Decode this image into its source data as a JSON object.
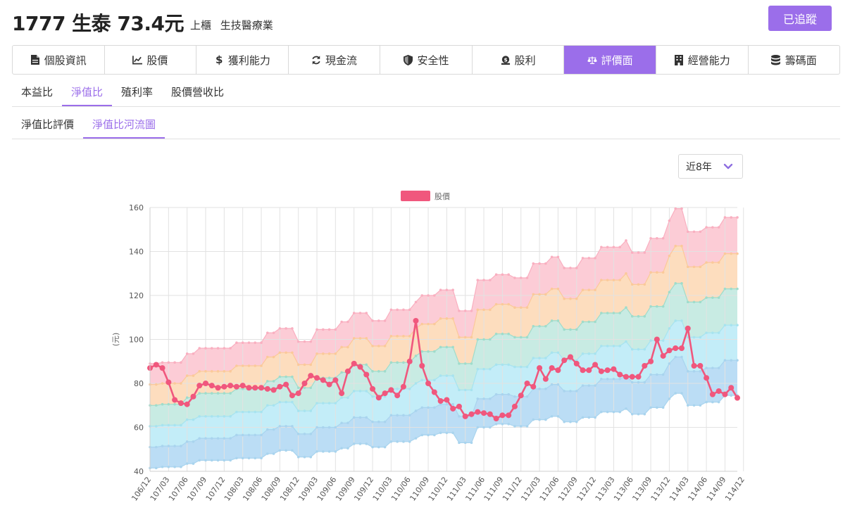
{
  "header": {
    "title": "1777 生泰 73.4元",
    "market": "上櫃",
    "industry": "生技醫療業",
    "follow_label": "已追蹤"
  },
  "main_tabs": [
    {
      "label": "個股資訊",
      "icon": "document-icon"
    },
    {
      "label": "股價",
      "icon": "line-chart-icon"
    },
    {
      "label": "獲利能力",
      "icon": "dollar-icon"
    },
    {
      "label": "現金流",
      "icon": "refresh-icon"
    },
    {
      "label": "安全性",
      "icon": "shield-icon"
    },
    {
      "label": "股利",
      "icon": "money-bag-icon"
    },
    {
      "label": "評價面",
      "icon": "balance-scale-icon",
      "active": true
    },
    {
      "label": "經營能力",
      "icon": "building-icon"
    },
    {
      "label": "籌碼面",
      "icon": "database-icon"
    }
  ],
  "sub_tabs": [
    {
      "label": "本益比"
    },
    {
      "label": "淨值比",
      "active": true
    },
    {
      "label": "殖利率"
    },
    {
      "label": "股價營收比"
    }
  ],
  "sub_tabs2": [
    {
      "label": "淨值比評價"
    },
    {
      "label": "淨值比河流圖",
      "active": true
    }
  ],
  "range": {
    "selected": "近8年"
  },
  "colors": {
    "accent": "#9B6EEA",
    "price": "#F0577D",
    "bands": [
      "#BBDDF5",
      "#C3EDF8",
      "#C8EBE3",
      "#FDDDBE",
      "#FCCCD6"
    ],
    "band_lines": [
      "#A9D4EE",
      "#A9D4EE",
      "#A7E3EF",
      "#9FDCCB",
      "#FBC99A",
      "#F9AFC0"
    ]
  },
  "chart_data": {
    "type": "line",
    "title": "",
    "legend": [
      "股價"
    ],
    "ylabel": "(元)",
    "ylim": [
      40,
      160
    ],
    "yticks": [
      40,
      60,
      80,
      100,
      120,
      140,
      160
    ],
    "xticks": [
      "106/12",
      "107/03",
      "107/06",
      "107/09",
      "107/12",
      "108/03",
      "108/06",
      "108/09",
      "108/12",
      "109/03",
      "109/06",
      "109/09",
      "109/12",
      "110/03",
      "110/06",
      "110/09",
      "110/12",
      "111/03",
      "111/06",
      "111/09",
      "111/12",
      "112/03",
      "112/06",
      "112/09",
      "112/12",
      "113/03",
      "113/06",
      "113/09",
      "113/12",
      "114/03",
      "114/06",
      "114/09",
      "114/12"
    ],
    "price": [
      87,
      88.5,
      87,
      80.5,
      72.5,
      71,
      70.5,
      74,
      79,
      80,
      79,
      78,
      78.5,
      79,
      78.5,
      79,
      78,
      78,
      78,
      77.5,
      77,
      78.5,
      79.5,
      74.5,
      75.5,
      80,
      83.5,
      82.5,
      81.5,
      79.5,
      81.5,
      75.5,
      85.5,
      89,
      87.5,
      84,
      77.5,
      73.5,
      75.5,
      77,
      74.5,
      78.5,
      90,
      108.5,
      88,
      80,
      76,
      72,
      72.5,
      68.5,
      69.5,
      65,
      66,
      67,
      66.5,
      66,
      64,
      65.5,
      65.5,
      69.5,
      74.5,
      80,
      78.5,
      87,
      82,
      87,
      86,
      90.5,
      92,
      89,
      86,
      86,
      88.5,
      85.5,
      86,
      86.5,
      84,
      83,
      83,
      83,
      88,
      90,
      100,
      92.5,
      95,
      96,
      96,
      105,
      88,
      88,
      82.5,
      75,
      76.5,
      75,
      78,
      73.4
    ],
    "bands": [
      {
        "name": "band1",
        "values": [
          41.5,
          41.5,
          42,
          42,
          42,
          42,
          43.5,
          43.5,
          45,
          45,
          45,
          45,
          45,
          45,
          46,
          46,
          46,
          46,
          46,
          48,
          48,
          49.5,
          49.5,
          49.5,
          46.5,
          46.5,
          46.5,
          49,
          49,
          49,
          49,
          50.5,
          50.5,
          52.5,
          52.5,
          52.5,
          51,
          51,
          51,
          53.5,
          53.5,
          53.5,
          53.5,
          55,
          56.5,
          56.5,
          56.5,
          57.5,
          57.5,
          57.5,
          53,
          53,
          53,
          60,
          60,
          60,
          61.5,
          61.5,
          61.5,
          60.5,
          60.5,
          60.5,
          63.5,
          63.5,
          63.5,
          65,
          65,
          62.5,
          62.5,
          62.5,
          64.5,
          64.5,
          64.5,
          67,
          67,
          67,
          67,
          68.5,
          66,
          66,
          66,
          69,
          69,
          69,
          73,
          75.5,
          75.5,
          70,
          70,
          70,
          71.5,
          71.5,
          71.5,
          74.5,
          74.5,
          74.5
        ]
      },
      {
        "name": "band2",
        "values": [
          51,
          51,
          51.5,
          51.5,
          51.5,
          51.5,
          53.5,
          53.5,
          55,
          55,
          55,
          55,
          55,
          55,
          56.5,
          56.5,
          56.5,
          56.5,
          56.5,
          59,
          59,
          60.5,
          60.5,
          60.5,
          57,
          57,
          57,
          60,
          60,
          60,
          60,
          62,
          62,
          64.5,
          64.5,
          64.5,
          62.5,
          62.5,
          62.5,
          65.5,
          65.5,
          65.5,
          65.5,
          67.5,
          69,
          69,
          69,
          70.5,
          70.5,
          70.5,
          65,
          65,
          65,
          73,
          73,
          73,
          75,
          75,
          75,
          74,
          74,
          74,
          77.5,
          77.5,
          77.5,
          79.5,
          79.5,
          76.5,
          76.5,
          76.5,
          79,
          79,
          79,
          82,
          82,
          82,
          82,
          83.5,
          80.5,
          80.5,
          80.5,
          84,
          84,
          84,
          89,
          92,
          92,
          85.5,
          85.5,
          85.5,
          87,
          87,
          87,
          90.5,
          90.5,
          90.5
        ]
      },
      {
        "name": "band3",
        "values": [
          60.5,
          60.5,
          61,
          61,
          61,
          61,
          63.5,
          63.5,
          65,
          65,
          65,
          65,
          65,
          65,
          67,
          67,
          67,
          67,
          67,
          70,
          70,
          71.5,
          71.5,
          71.5,
          67.5,
          67.5,
          67.5,
          71,
          71,
          71,
          71,
          73.5,
          73.5,
          76.5,
          76.5,
          76.5,
          74,
          74,
          74,
          77.5,
          77.5,
          77.5,
          77.5,
          80,
          81.5,
          81.5,
          81.5,
          83.5,
          83.5,
          83.5,
          77,
          77,
          77,
          86.5,
          86.5,
          86.5,
          88.5,
          88.5,
          88.5,
          87.5,
          87.5,
          87.5,
          91.5,
          91.5,
          91.5,
          94,
          94,
          90.5,
          90.5,
          90.5,
          93.5,
          93.5,
          93.5,
          97,
          97,
          97,
          97,
          99,
          95.5,
          95.5,
          95.5,
          99.5,
          99.5,
          99.5,
          105,
          108.5,
          108.5,
          101,
          101,
          101,
          103,
          103,
          103,
          106.5,
          106.5,
          106.5
        ]
      },
      {
        "name": "band4",
        "values": [
          70,
          70,
          70.5,
          70.5,
          70.5,
          70.5,
          73.5,
          73.5,
          75.5,
          75.5,
          75.5,
          75.5,
          75.5,
          75.5,
          77.5,
          77.5,
          77.5,
          77.5,
          77.5,
          81,
          81,
          83,
          83,
          83,
          78,
          78,
          78,
          82.5,
          82.5,
          82.5,
          82.5,
          85,
          85,
          88.5,
          88.5,
          88.5,
          85.5,
          85.5,
          85.5,
          89.5,
          89.5,
          89.5,
          89.5,
          92.5,
          94.5,
          94.5,
          94.5,
          96.5,
          96.5,
          96.5,
          89,
          89,
          89,
          100,
          100,
          100,
          102.5,
          102.5,
          102.5,
          101,
          101,
          101,
          106,
          106,
          106,
          108.5,
          108.5,
          104.5,
          104.5,
          104.5,
          108,
          108,
          108,
          112,
          112,
          112,
          112,
          114.5,
          110.5,
          110.5,
          110.5,
          115,
          115,
          115,
          121.5,
          125.5,
          125.5,
          117,
          117,
          117,
          119,
          119,
          119,
          123,
          123,
          123
        ]
      },
      {
        "name": "band5",
        "values": [
          79.5,
          79.5,
          80,
          80,
          80,
          80,
          83.5,
          83.5,
          85.5,
          85.5,
          85.5,
          85.5,
          85.5,
          85.5,
          88,
          88,
          88,
          88,
          88,
          92,
          92,
          94,
          94,
          94,
          88.5,
          88.5,
          88.5,
          93.5,
          93.5,
          93.5,
          93.5,
          96.5,
          96.5,
          100.5,
          100.5,
          100.5,
          97,
          97,
          97,
          101.5,
          101.5,
          101.5,
          101.5,
          105,
          107,
          107,
          107,
          109.5,
          109.5,
          109.5,
          101,
          101,
          101,
          113.5,
          113.5,
          113.5,
          116,
          116,
          116,
          114.5,
          114.5,
          114.5,
          120.5,
          120.5,
          120.5,
          123,
          123,
          118.5,
          118.5,
          118.5,
          122.5,
          122.5,
          122.5,
          127,
          127,
          127,
          127,
          130,
          125,
          125,
          125,
          130.5,
          130.5,
          130.5,
          138,
          142.5,
          142.5,
          133,
          133,
          133,
          135,
          135,
          135,
          139,
          139,
          139
        ]
      },
      {
        "name": "band6",
        "values": [
          89,
          89,
          89.5,
          89.5,
          89.5,
          89.5,
          93.5,
          93.5,
          96,
          96,
          96,
          96,
          96,
          96,
          98.5,
          98.5,
          98.5,
          98.5,
          98.5,
          103,
          103,
          105,
          105,
          105,
          99,
          99,
          99,
          104.5,
          104.5,
          104.5,
          104.5,
          108,
          108,
          112,
          112,
          112,
          108.5,
          108.5,
          108.5,
          113.5,
          113.5,
          113.5,
          113.5,
          117,
          120,
          120,
          120,
          122.5,
          122.5,
          122.5,
          113,
          113,
          113,
          127,
          127,
          127,
          129.5,
          129.5,
          129.5,
          128,
          128,
          128,
          134.5,
          134.5,
          134.5,
          137.5,
          137.5,
          132.5,
          132.5,
          132.5,
          137,
          137,
          137,
          142,
          142,
          142,
          142,
          145,
          139.5,
          139.5,
          139.5,
          146,
          146,
          146,
          154,
          159.5,
          159.5,
          149,
          149,
          149,
          151,
          151,
          151,
          155.5,
          155.5,
          155.5
        ]
      }
    ]
  }
}
